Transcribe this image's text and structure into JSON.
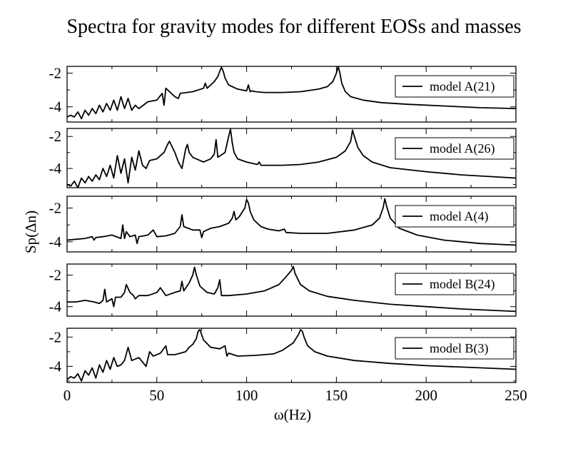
{
  "chart_data": {
    "type": "line",
    "title": "Spectra for gravity modes for different EOSs and masses",
    "xlabel": "ω(Hz)",
    "ylabel": "Sp(Δn)",
    "xlim": [
      0,
      250
    ],
    "xticks": [
      "0",
      "50",
      "100",
      "150",
      "200",
      "250"
    ],
    "xtick_values": [
      0,
      50,
      100,
      150,
      200,
      250
    ],
    "ytick_values": [
      -2,
      -4
    ],
    "legend_position": "top-right",
    "panels": [
      {
        "ylim": [
          -4.9,
          -1.6
        ],
        "yticks": [
          "-2",
          "-4"
        ],
        "series": {
          "name": "model A(21)",
          "x": [
            0,
            2,
            4,
            6,
            8,
            10,
            12,
            14,
            16,
            18,
            20,
            22,
            24,
            26,
            28,
            30,
            32,
            34,
            36,
            38,
            40,
            45,
            50,
            53,
            54,
            55,
            60,
            62,
            63,
            70,
            76,
            77,
            78,
            80,
            82,
            84,
            85,
            86,
            87,
            88,
            90,
            95,
            100,
            101,
            102,
            103,
            105,
            110,
            120,
            130,
            140,
            145,
            148,
            150,
            151,
            152,
            153,
            155,
            158,
            165,
            175,
            190,
            210,
            230,
            250
          ],
          "y": [
            -4.6,
            -4.5,
            -4.6,
            -4.3,
            -4.7,
            -4.2,
            -4.5,
            -4.1,
            -4.4,
            -3.9,
            -4.3,
            -3.8,
            -4.2,
            -3.6,
            -4.2,
            -3.4,
            -4.1,
            -3.5,
            -4.2,
            -3.9,
            -4.1,
            -3.7,
            -3.6,
            -3.2,
            -3.9,
            -2.9,
            -3.4,
            -3.5,
            -3.2,
            -3.1,
            -2.9,
            -2.6,
            -2.9,
            -2.7,
            -2.5,
            -2.2,
            -1.9,
            -1.65,
            -1.9,
            -2.3,
            -2.7,
            -2.95,
            -3.05,
            -2.7,
            -3.1,
            -3.05,
            -3.1,
            -3.15,
            -3.15,
            -3.1,
            -2.95,
            -2.8,
            -2.5,
            -2.0,
            -1.6,
            -2.0,
            -2.6,
            -3.1,
            -3.4,
            -3.6,
            -3.75,
            -3.85,
            -3.95,
            -4.05,
            -4.1
          ]
        }
      },
      {
        "ylim": [
          -5.2,
          -1.5
        ],
        "yticks": [
          "-2",
          "-4"
        ],
        "series": {
          "name": "model A(26)",
          "x": [
            0,
            2,
            4,
            6,
            8,
            10,
            12,
            14,
            16,
            18,
            20,
            22,
            24,
            26,
            28,
            30,
            32,
            34,
            36,
            38,
            40,
            42,
            44,
            46,
            50,
            54,
            56,
            57,
            60,
            62,
            64,
            66,
            67,
            68,
            70,
            76,
            80,
            82,
            83,
            84,
            88,
            90,
            91,
            92,
            93,
            95,
            100,
            106,
            107,
            108,
            120,
            130,
            140,
            150,
            155,
            158,
            159,
            160,
            162,
            165,
            170,
            180,
            200,
            220,
            250
          ],
          "y": [
            -5.0,
            -5.1,
            -4.8,
            -5.2,
            -4.6,
            -4.9,
            -4.5,
            -4.8,
            -4.4,
            -4.7,
            -4.0,
            -4.5,
            -3.8,
            -4.6,
            -3.2,
            -4.3,
            -3.4,
            -4.9,
            -3.3,
            -4.1,
            -2.9,
            -3.8,
            -4.0,
            -3.5,
            -3.4,
            -3.0,
            -2.5,
            -2.3,
            -3.0,
            -3.6,
            -4.0,
            -2.8,
            -2.5,
            -3.0,
            -3.3,
            -3.6,
            -3.4,
            -3.1,
            -2.2,
            -3.3,
            -3.0,
            -2.0,
            -1.55,
            -2.4,
            -3.0,
            -3.4,
            -3.6,
            -3.75,
            -3.6,
            -3.8,
            -3.8,
            -3.75,
            -3.6,
            -3.3,
            -2.9,
            -2.3,
            -1.6,
            -2.0,
            -2.7,
            -3.2,
            -3.6,
            -3.95,
            -4.2,
            -4.4,
            -4.6
          ]
        }
      },
      {
        "ylim": [
          -4.6,
          -1.3
        ],
        "yticks": [
          "-2",
          "-4"
        ],
        "series": {
          "name": "model A(4)",
          "x": [
            0,
            5,
            10,
            14,
            15,
            16,
            20,
            25,
            30,
            31,
            32,
            33,
            35,
            38,
            39,
            40,
            45,
            48,
            50,
            55,
            60,
            63,
            64,
            65,
            70,
            74,
            75,
            76,
            80,
            85,
            90,
            92,
            93,
            94,
            96,
            99,
            100,
            101,
            102,
            104,
            108,
            112,
            118,
            121,
            122,
            130,
            145,
            160,
            170,
            174,
            176,
            177,
            178,
            180,
            185,
            195,
            210,
            230,
            250
          ],
          "y": [
            -3.9,
            -3.85,
            -3.8,
            -3.7,
            -3.9,
            -3.75,
            -3.7,
            -3.6,
            -3.8,
            -3.0,
            -3.8,
            -3.4,
            -3.7,
            -3.6,
            -4.1,
            -3.7,
            -3.6,
            -3.3,
            -3.7,
            -3.65,
            -3.5,
            -3.1,
            -2.4,
            -3.1,
            -3.3,
            -3.3,
            -3.75,
            -3.4,
            -3.2,
            -3.1,
            -2.9,
            -2.6,
            -2.2,
            -2.7,
            -2.5,
            -2.0,
            -1.5,
            -1.7,
            -2.2,
            -2.7,
            -3.1,
            -3.25,
            -3.35,
            -3.25,
            -3.45,
            -3.5,
            -3.5,
            -3.3,
            -3.0,
            -2.6,
            -2.0,
            -1.45,
            -1.9,
            -2.6,
            -3.2,
            -3.6,
            -3.9,
            -4.1,
            -4.2
          ]
        }
      },
      {
        "ylim": [
          -4.6,
          -1.3
        ],
        "yticks": [
          "-2",
          "-4"
        ],
        "series": {
          "name": "model B(24)",
          "x": [
            0,
            5,
            10,
            15,
            18,
            20,
            21,
            22,
            25,
            26,
            27,
            30,
            32,
            33,
            35,
            37,
            38,
            40,
            45,
            50,
            52,
            55,
            60,
            63,
            64,
            65,
            68,
            70,
            71,
            72,
            74,
            78,
            82,
            84,
            85,
            86,
            90,
            100,
            110,
            118,
            122,
            125,
            126,
            127,
            130,
            135,
            145,
            160,
            180,
            200,
            220,
            250
          ],
          "y": [
            -3.7,
            -3.7,
            -3.6,
            -3.7,
            -3.8,
            -3.6,
            -2.9,
            -3.7,
            -3.5,
            -4.0,
            -3.4,
            -3.4,
            -3.1,
            -2.6,
            -3.1,
            -3.3,
            -3.5,
            -3.3,
            -3.3,
            -3.1,
            -2.8,
            -3.3,
            -3.1,
            -3.0,
            -2.4,
            -3.0,
            -2.5,
            -2.0,
            -1.5,
            -2.0,
            -2.7,
            -3.1,
            -3.2,
            -2.8,
            -2.3,
            -3.3,
            -3.3,
            -3.2,
            -3.0,
            -2.6,
            -2.1,
            -1.7,
            -1.45,
            -1.9,
            -2.6,
            -3.0,
            -3.35,
            -3.6,
            -3.85,
            -4.0,
            -4.15,
            -4.3
          ]
        }
      },
      {
        "ylim": [
          -5.1,
          -1.4
        ],
        "yticks": [
          "-2",
          "-4"
        ],
        "series": {
          "name": "model B(3)",
          "x": [
            0,
            2,
            4,
            6,
            8,
            10,
            12,
            14,
            16,
            18,
            20,
            22,
            24,
            26,
            28,
            30,
            32,
            34,
            36,
            40,
            44,
            46,
            48,
            52,
            55,
            56,
            60,
            66,
            68,
            70,
            72,
            73,
            74,
            76,
            80,
            85,
            88,
            89,
            90,
            95,
            105,
            115,
            120,
            126,
            129,
            130,
            131,
            132,
            134,
            138,
            145,
            160,
            180,
            200,
            220,
            250
          ],
          "y": [
            -4.9,
            -4.7,
            -4.8,
            -4.5,
            -5.0,
            -4.3,
            -4.6,
            -4.1,
            -4.8,
            -3.9,
            -4.4,
            -3.6,
            -4.2,
            -3.4,
            -4.0,
            -3.9,
            -3.6,
            -2.7,
            -3.6,
            -3.4,
            -4.0,
            -3.0,
            -3.3,
            -3.1,
            -2.6,
            -3.2,
            -3.2,
            -3.0,
            -2.7,
            -2.5,
            -2.1,
            -1.6,
            -1.5,
            -2.2,
            -2.7,
            -2.8,
            -2.6,
            -3.3,
            -3.1,
            -3.3,
            -3.25,
            -3.15,
            -2.9,
            -2.4,
            -1.8,
            -1.5,
            -1.6,
            -2.0,
            -2.6,
            -3.0,
            -3.3,
            -3.6,
            -3.8,
            -3.95,
            -4.05,
            -4.2
          ]
        }
      }
    ]
  }
}
